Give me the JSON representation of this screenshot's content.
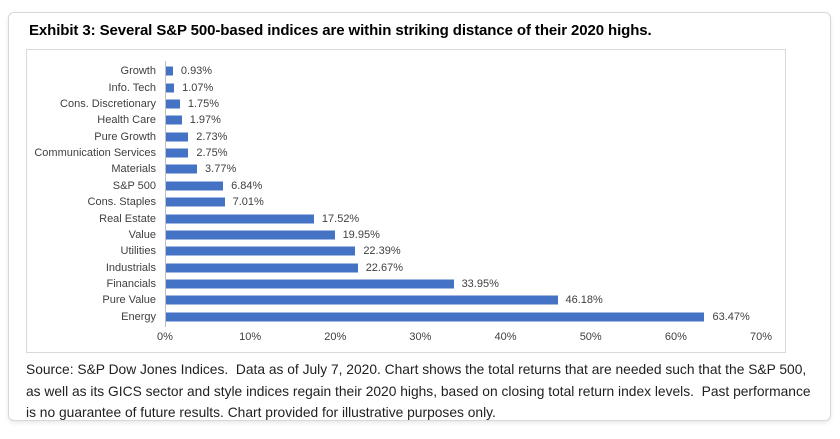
{
  "exhibit_title": "Exhibit 3: Several S&P 500-based indices are within striking distance of their 2020 highs.",
  "chart_data": {
    "type": "bar",
    "orientation": "horizontal",
    "title": "",
    "xlabel": "",
    "ylabel": "",
    "xlim": [
      0,
      70
    ],
    "x_tick_labels": [
      "0%",
      "10%",
      "20%",
      "30%",
      "40%",
      "50%",
      "60%",
      "70%"
    ],
    "grid": false,
    "legend": false,
    "bar_color": "#4472C4",
    "categories": [
      "Growth",
      "Info. Tech",
      "Cons. Discretionary",
      "Health Care",
      "Pure Growth",
      "Communication Services",
      "Materials",
      "S&P 500",
      "Cons. Staples",
      "Real Estate",
      "Value",
      "Utilities",
      "Industrials",
      "Financials",
      "Pure Value",
      "Energy"
    ],
    "values": [
      0.93,
      1.07,
      1.75,
      1.97,
      2.73,
      2.75,
      3.77,
      6.84,
      7.01,
      17.52,
      19.95,
      22.39,
      22.67,
      33.95,
      46.18,
      63.47
    ],
    "data_labels": [
      "0.93%",
      "1.07%",
      "1.75%",
      "1.97%",
      "2.73%",
      "2.75%",
      "3.77%",
      "6.84%",
      "7.01%",
      "17.52%",
      "19.95%",
      "22.39%",
      "22.67%",
      "33.95%",
      "46.18%",
      "63.47%"
    ]
  },
  "source_lines": [
    "Source: S&P Dow Jones Indices.  Data as of July 7, 2020. Chart shows the total returns that are needed such that the S&P 500,",
    "as well as its GICS sector and style indices regain their 2020 highs, based on closing total return index levels.  Past performance",
    "is no guarantee of future results. Chart provided for illustrative purposes only."
  ],
  "colors": {
    "bar": "#4472C4",
    "axis_line": "#BFBFBF",
    "chart_border": "#D9D9D9",
    "label_text": "#404040"
  }
}
